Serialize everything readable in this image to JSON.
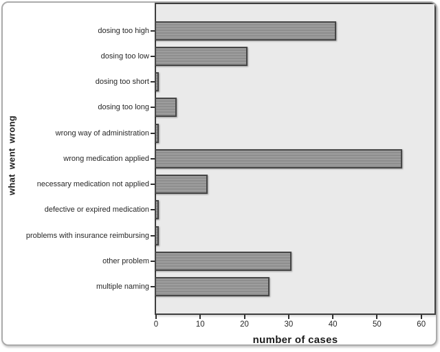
{
  "figure": {
    "y_axis_title": "what went wrong",
    "x_axis_title": "number of cases"
  },
  "chart_data": {
    "type": "bar",
    "orientation": "horizontal",
    "title": "",
    "xlabel": "number of cases",
    "ylabel": "what went wrong",
    "categories": [
      "dosing too high",
      "dosing too low",
      "dosing too short",
      "dosing too long",
      "wrong way of administration",
      "wrong medication applied",
      "necessary medication not applied",
      "defective or expired medication",
      "problems with insurance reimbursing",
      "other problem",
      "multiple naming"
    ],
    "values": [
      41,
      21,
      1,
      5,
      1,
      56,
      12,
      1,
      1,
      31,
      26
    ],
    "xlim": [
      0,
      63
    ],
    "x_ticks": [
      0,
      10,
      20,
      30,
      40,
      50,
      60
    ],
    "grid": false,
    "legend": false,
    "colors": {
      "bar_fill": "#969696",
      "bar_border": "#464646",
      "plot_background": "#eaeaea",
      "frame_border": "#3d3d3d",
      "text": "#262626"
    }
  }
}
